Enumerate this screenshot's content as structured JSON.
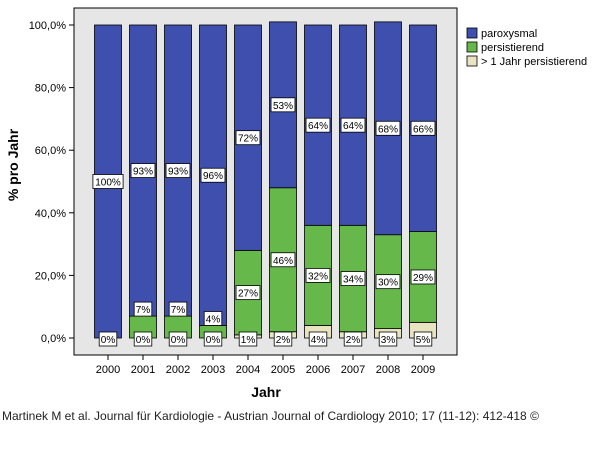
{
  "chart_data": {
    "type": "bar",
    "stacked": true,
    "categories": [
      "2000",
      "2001",
      "2002",
      "2003",
      "2004",
      "2005",
      "2006",
      "2007",
      "2008",
      "2009"
    ],
    "series": [
      {
        "name": "> 1 Jahr persistierend",
        "color": "#e8e3c0",
        "values": [
          0,
          0,
          0,
          0,
          1,
          2,
          4,
          2,
          3,
          5
        ],
        "labels": [
          "0%",
          "0%",
          "0%",
          "0%",
          "1%",
          "2%",
          "4%",
          "2%",
          "3%",
          "5%"
        ]
      },
      {
        "name": "persistierend",
        "color": "#66b84a",
        "values": [
          0,
          7,
          7,
          4,
          27,
          46,
          32,
          34,
          30,
          29
        ],
        "labels": [
          "",
          "7%",
          "7%",
          "4%",
          "27%",
          "46%",
          "32%",
          "34%",
          "30%",
          "29%"
        ]
      },
      {
        "name": "paroxysmal",
        "color": "#3f4fae",
        "values": [
          100,
          93,
          93,
          96,
          72,
          53,
          64,
          64,
          68,
          66
        ],
        "labels": [
          "100%",
          "93%",
          "93%",
          "96%",
          "72%",
          "53%",
          "64%",
          "64%",
          "68%",
          "66%"
        ]
      }
    ],
    "xlabel": "Jahr",
    "ylabel": "% pro Jahr",
    "ylim": [
      0,
      100
    ],
    "yticks": [
      "0,0%",
      "20,0%",
      "40,0%",
      "60,0%",
      "80,0%",
      "100,0%"
    ],
    "legend_position": "top-right",
    "grid": false
  },
  "caption": "Martinek M et al. Journal für Kardiologie - Austrian Journal of Cardiology 2010; 17 (11-12): 412-418 ©"
}
